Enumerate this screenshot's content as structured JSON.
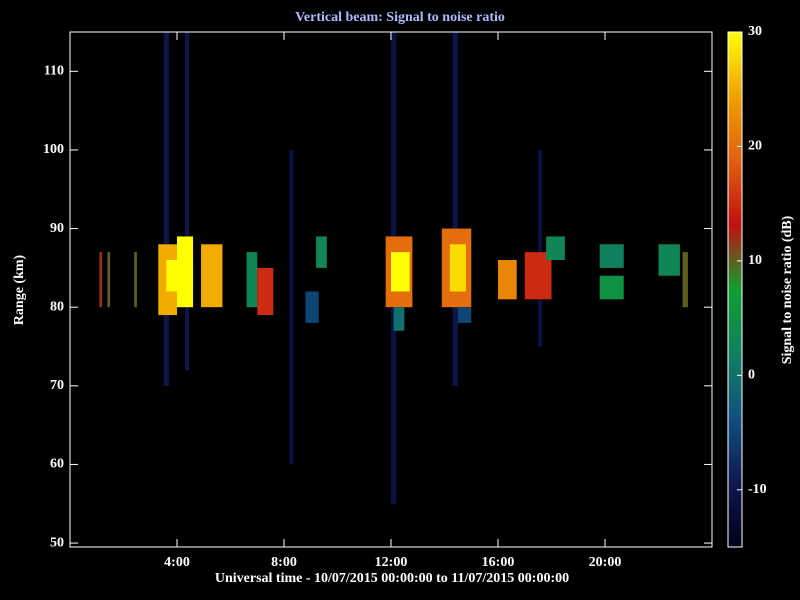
{
  "chart_data": {
    "type": "heatmap",
    "title": "Vertical beam: Signal to noise ratio",
    "xlabel": "Universal time - 10/07/2015 00:00:00 to 11/07/2015 00:00:00",
    "ylabel": "Range (km)",
    "colorbar_label": "Signal to noise ratio (dB)",
    "xlim": [
      0,
      24
    ],
    "xticks": [
      {
        "value": 4,
        "label": "4:00"
      },
      {
        "value": 8,
        "label": "8:00"
      },
      {
        "value": 12,
        "label": "12:00"
      },
      {
        "value": 16,
        "label": "16:00"
      },
      {
        "value": 20,
        "label": "20:00"
      }
    ],
    "ylim": [
      49.5,
      115
    ],
    "yticks": [
      50,
      60,
      70,
      80,
      90,
      100,
      110
    ],
    "clim": [
      -15,
      30
    ],
    "cticks": [
      -10,
      0,
      10,
      20,
      30
    ],
    "colormap": [
      "#000018",
      "#101850",
      "#105080",
      "#108060",
      "#10a030",
      "#c01010",
      "#e06010",
      "#f0a000",
      "#ffff00"
    ],
    "cells": [
      {
        "x": [
          3.5,
          3.7
        ],
        "y": [
          70,
          115
        ],
        "value": -10
      },
      {
        "x": [
          4.3,
          4.45
        ],
        "y": [
          72,
          115
        ],
        "value": -10
      },
      {
        "x": [
          8.2,
          8.35
        ],
        "y": [
          60,
          100
        ],
        "value": -11
      },
      {
        "x": [
          12.0,
          12.2
        ],
        "y": [
          55,
          115
        ],
        "value": -11
      },
      {
        "x": [
          14.3,
          14.5
        ],
        "y": [
          70,
          115
        ],
        "value": -10
      },
      {
        "x": [
          17.5,
          17.65
        ],
        "y": [
          75,
          100
        ],
        "value": -11
      },
      {
        "x": [
          1.1,
          1.2
        ],
        "y": [
          80,
          87
        ],
        "value": 12
      },
      {
        "x": [
          1.4,
          1.5
        ],
        "y": [
          80,
          87
        ],
        "value": 10
      },
      {
        "x": [
          2.4,
          2.5
        ],
        "y": [
          80,
          87
        ],
        "value": 10
      },
      {
        "x": [
          3.3,
          4.0
        ],
        "y": [
          79,
          88
        ],
        "value": 25
      },
      {
        "x": [
          4.0,
          4.6
        ],
        "y": [
          80,
          89
        ],
        "value": 30
      },
      {
        "x": [
          3.6,
          4.6
        ],
        "y": [
          82,
          86
        ],
        "value": 30
      },
      {
        "x": [
          4.9,
          5.7
        ],
        "y": [
          80,
          88
        ],
        "value": 25
      },
      {
        "x": [
          6.6,
          7.0
        ],
        "y": [
          80,
          87
        ],
        "value": 3
      },
      {
        "x": [
          7.0,
          7.6
        ],
        "y": [
          79,
          85
        ],
        "value": 15
      },
      {
        "x": [
          8.8,
          9.3
        ],
        "y": [
          78,
          82
        ],
        "value": -5
      },
      {
        "x": [
          9.2,
          9.6
        ],
        "y": [
          85,
          89
        ],
        "value": 3
      },
      {
        "x": [
          11.8,
          12.8
        ],
        "y": [
          80,
          89
        ],
        "value": 20
      },
      {
        "x": [
          12.0,
          12.7
        ],
        "y": [
          82,
          87
        ],
        "value": 30
      },
      {
        "x": [
          12.1,
          12.5
        ],
        "y": [
          77,
          80
        ],
        "value": 0
      },
      {
        "x": [
          13.9,
          15.0
        ],
        "y": [
          80,
          90
        ],
        "value": 20
      },
      {
        "x": [
          14.2,
          14.8
        ],
        "y": [
          82,
          88
        ],
        "value": 28
      },
      {
        "x": [
          14.5,
          15.0
        ],
        "y": [
          78,
          80
        ],
        "value": -5
      },
      {
        "x": [
          16.0,
          16.7
        ],
        "y": [
          81,
          86
        ],
        "value": 22
      },
      {
        "x": [
          17.0,
          18.0
        ],
        "y": [
          81,
          87
        ],
        "value": 15
      },
      {
        "x": [
          17.8,
          18.5
        ],
        "y": [
          86,
          89
        ],
        "value": 3
      },
      {
        "x": [
          19.8,
          20.7
        ],
        "y": [
          85,
          88
        ],
        "value": 2
      },
      {
        "x": [
          19.8,
          20.7
        ],
        "y": [
          81,
          84
        ],
        "value": 5
      },
      {
        "x": [
          22.0,
          22.8
        ],
        "y": [
          84,
          88
        ],
        "value": 3
      },
      {
        "x": [
          22.9,
          23.1
        ],
        "y": [
          80,
          87
        ],
        "value": 10
      }
    ]
  }
}
